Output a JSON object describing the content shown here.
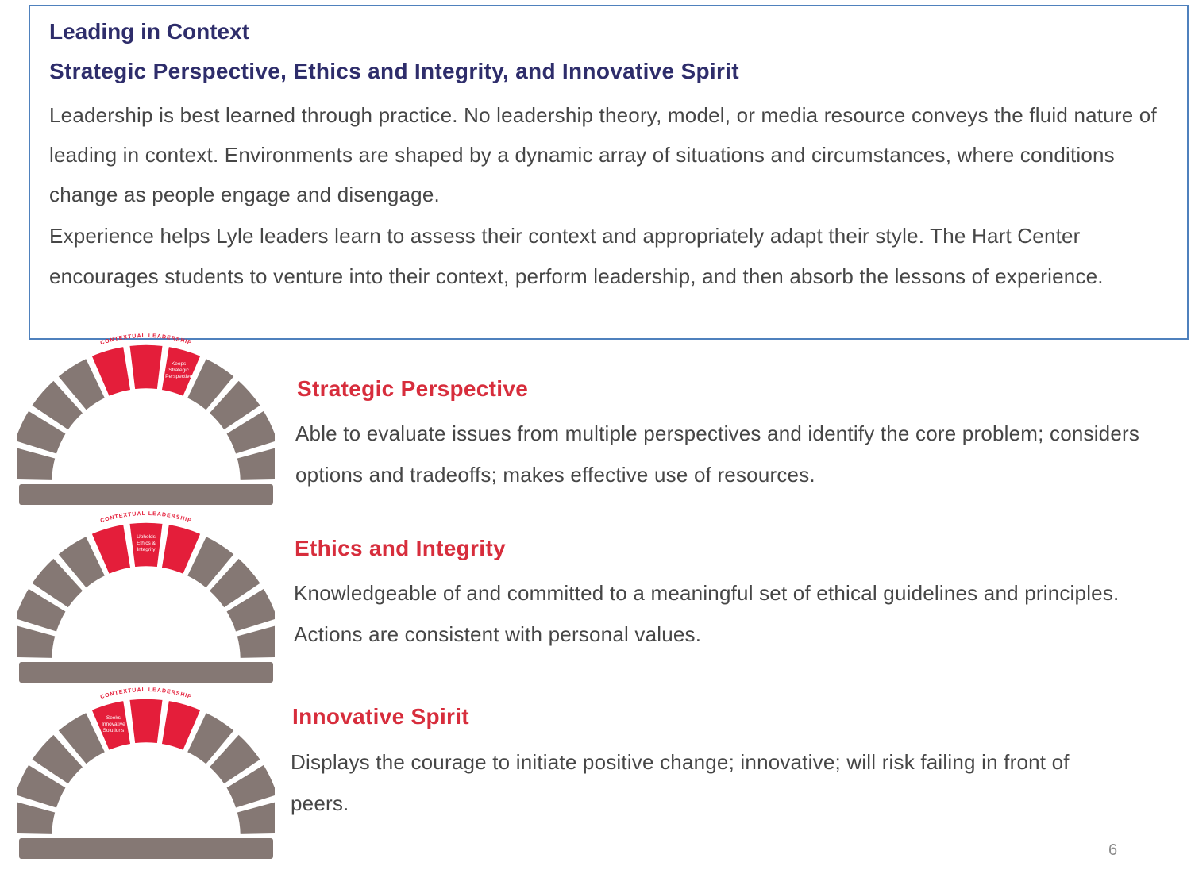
{
  "header": {
    "title": "Leading in Context",
    "subtitle": "Strategic Perspective, Ethics and Integrity, and Innovative Spirit",
    "paragraph1": "Leadership is best learned through practice. No leadership theory, model, or media resource conveys the fluid nature of leading in context. Environments are shaped by a dynamic array of situations and circumstances, where conditions change as people engage and disengage.",
    "paragraph2": "Experience helps Lyle leaders learn to assess their context and appropriately adapt their style. The Hart Center encourages students to venture into their context, perform leadership, and then absorb the lessons of experience."
  },
  "arches": [
    {
      "arc_label": "CONTEXTUAL LEADERSHIP",
      "stone_label": [
        "Keeps",
        "Strategic",
        "Perspective"
      ]
    },
    {
      "arc_label": "CONTEXTUAL LEADERSHIP",
      "stone_label": [
        "Upholds",
        "Ethics &",
        "Integrity"
      ]
    },
    {
      "arc_label": "CONTEXTUAL LEADERSHIP",
      "stone_label": [
        "Seeks",
        "Innovative",
        "Solutions"
      ]
    }
  ],
  "sections": [
    {
      "title": "Strategic Perspective",
      "text": "Able to evaluate issues from multiple perspectives and identify the core problem; considers options and tradeoffs; makes effective use of resources."
    },
    {
      "title": "Ethics and Integrity",
      "text": "Knowledgeable of and committed to a meaningful set of ethical guidelines and principles. Actions are consistent with personal values."
    },
    {
      "title": "Innovative Spirit",
      "text": "Displays the courage to initiate positive change; innovative; will risk failing in front of peers."
    }
  ],
  "page_number": "6",
  "colors": {
    "accent_red": "#e41e3a",
    "stone_gray": "#857874",
    "title_navy": "#2e2d6b",
    "border_blue": "#4f81bd"
  }
}
